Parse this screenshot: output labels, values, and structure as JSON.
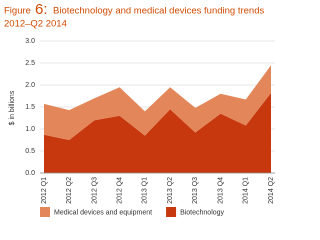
{
  "chart_data": {
    "type": "stacked_area",
    "figure_label": "Figure",
    "figure_number": "6:",
    "title": "Biotechnology and medical devices funding trends",
    "subtitle": "2012–Q2 2014",
    "y_label": "$ in billions",
    "categories": [
      "2012 Q1",
      "2012 Q2",
      "2012 Q3",
      "2012 Q4",
      "2013 Q1",
      "2013 Q2",
      "2013 Q3",
      "2013 Q4",
      "2014 Q1",
      "2014 Q2"
    ],
    "series": [
      {
        "name": "Biotechnology",
        "color": "#c8380f",
        "values": [
          0.87,
          0.75,
          1.2,
          1.3,
          0.85,
          1.45,
          0.92,
          1.35,
          1.08,
          1.82
        ]
      },
      {
        "name": "Medical devices and equipment",
        "color": "#e3875a",
        "values": [
          0.7,
          0.68,
          0.5,
          0.65,
          0.55,
          0.5,
          0.56,
          0.45,
          0.59,
          0.63
        ]
      }
    ],
    "legend_order": [
      1,
      0
    ],
    "ylim": [
      0,
      3
    ],
    "yticks": [
      {
        "value": 0,
        "label": "0.0"
      },
      0.5,
      {
        "value": 1,
        "label": "1.0"
      },
      1.5,
      {
        "value": 2,
        "label": "2.0"
      },
      2.5,
      {
        "value": 3,
        "label": "3.0"
      }
    ],
    "grid": true
  }
}
